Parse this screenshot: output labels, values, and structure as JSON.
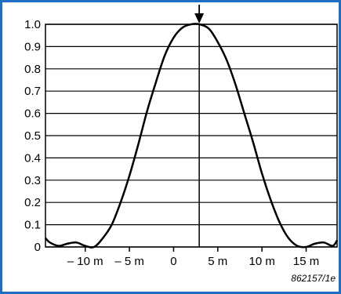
{
  "chart_data": {
    "type": "line",
    "title": "",
    "xlabel": "",
    "ylabel": "",
    "xlim": [
      -14.5,
      18.5
    ],
    "ylim": [
      0,
      1.0
    ],
    "grid": "horizontal",
    "y_ticks": [
      0,
      0.1,
      0.2,
      0.3,
      0.4,
      0.5,
      0.6,
      0.7,
      0.8,
      0.9,
      1.0
    ],
    "y_tick_labels": [
      "0",
      "0.1",
      "0.2",
      "0.3",
      "0.4",
      "0.5",
      "0.6",
      "0.7",
      "0.8",
      "0.9",
      "1.0"
    ],
    "x_ticks": [
      -10,
      -5,
      0,
      5,
      10,
      15
    ],
    "x_tick_labels": [
      "– 10 m",
      "– 5 m",
      "0",
      "5 m",
      "10 m",
      "15 m"
    ],
    "peak_marker": {
      "x": 2.9,
      "y": 1.0
    },
    "series": [
      {
        "x": [
          -14.5,
          -14,
          -13,
          -12,
          -11,
          -10,
          -9,
          -8,
          -7,
          -6,
          -5,
          -4,
          -3,
          -2,
          -1,
          0,
          1,
          2,
          2.9,
          4,
          5,
          6,
          7,
          8,
          9,
          10,
          11,
          12,
          13,
          14,
          15,
          16,
          17,
          18,
          18.5
        ],
        "y": [
          0.04,
          0.02,
          0.005,
          0.015,
          0.02,
          0.005,
          0.0,
          0.04,
          0.1,
          0.2,
          0.32,
          0.46,
          0.61,
          0.74,
          0.86,
          0.94,
          0.985,
          1.0,
          1.0,
          0.98,
          0.92,
          0.84,
          0.73,
          0.6,
          0.47,
          0.33,
          0.21,
          0.11,
          0.04,
          0.005,
          0.0,
          0.015,
          0.02,
          0.005,
          0.03
        ]
      }
    ]
  },
  "figure": {
    "reference_code": "862157/1e",
    "colors": {
      "border": "#1e6fc4",
      "curve": "#000000",
      "grid": "#000000"
    }
  }
}
